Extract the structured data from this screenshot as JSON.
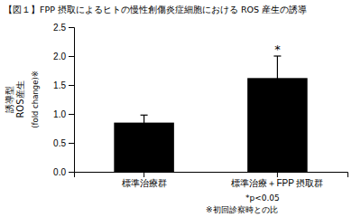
{
  "chart_data": {
    "type": "bar",
    "title": "【図１】FPP 摂取によるヒトの慢性創傷炎症細胞における ROS 産生の誘導",
    "categories": [
      "標準治療群",
      "標準治療＋FPP 摂取群"
    ],
    "values": [
      0.85,
      1.62
    ],
    "errors": [
      0.13,
      0.38
    ],
    "color": "#000000",
    "ylim": [
      0,
      2.5
    ],
    "yticks": [
      {
        "value": 0,
        "label": "0.0"
      },
      0.5,
      {
        "value": 1,
        "label": "1.0"
      },
      1.5,
      {
        "value": 2,
        "label": "2.0"
      },
      2.5
    ],
    "ylabel": "誘導型\nROS産生",
    "ylabel_sub": "(fold change)※",
    "annotations": [
      {
        "text": "*",
        "x": "標準治療＋FPP 摂取群"
      }
    ],
    "footnotes": [
      "*p<0.05",
      "※初回診察時との比"
    ],
    "grid": false
  }
}
